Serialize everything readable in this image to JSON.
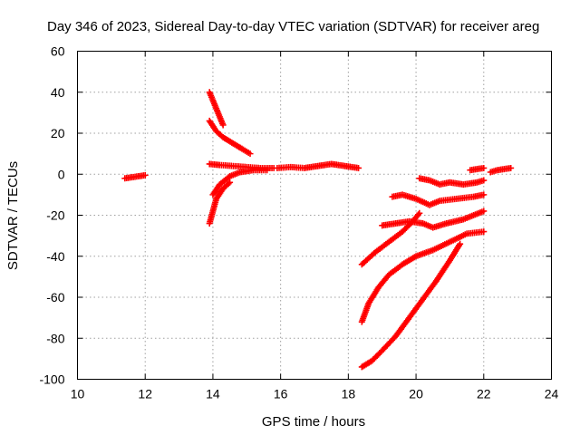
{
  "chart_data": {
    "type": "scatter",
    "title": "Day 346 of 2023, Sidereal Day-to-day VTEC variation (SDTVAR) for receiver areg",
    "xlabel": "GPS time / hours",
    "ylabel": "SDTVAR / TECUs",
    "xlim": [
      10,
      24
    ],
    "ylim": [
      -100,
      60
    ],
    "xticks": [
      "10",
      "12",
      "14",
      "16",
      "18",
      "20",
      "22",
      "24"
    ],
    "yticks": [
      "-100",
      "-80",
      "-60",
      "-40",
      "-20",
      "0",
      "20",
      "40",
      "60"
    ],
    "grid": true,
    "marker": "plus",
    "color": "#ff0000",
    "series": [
      {
        "name": "s1",
        "x": [
          11.4,
          11.6,
          11.8,
          12.0
        ],
        "y": [
          -2,
          -1.5,
          -1,
          -0.5
        ]
      },
      {
        "name": "s2",
        "x": [
          13.9,
          14.0,
          14.1,
          14.2,
          14.3
        ],
        "y": [
          40,
          36,
          32,
          28,
          24
        ]
      },
      {
        "name": "s3",
        "x": [
          13.9,
          14.1,
          14.3,
          14.6,
          14.9,
          15.1
        ],
        "y": [
          26,
          21,
          18,
          15,
          12,
          10
        ]
      },
      {
        "name": "s4",
        "x": [
          13.9,
          14.2,
          14.6,
          15.0,
          15.4,
          15.8
        ],
        "y": [
          5,
          4.5,
          4,
          3.5,
          3,
          3
        ]
      },
      {
        "name": "s5",
        "x": [
          14.0,
          14.2,
          14.5,
          14.8,
          15.2,
          15.6
        ],
        "y": [
          -10,
          -5,
          -1,
          1,
          2,
          2
        ]
      },
      {
        "name": "s6",
        "x": [
          13.9,
          14.0,
          14.1,
          14.3,
          14.5
        ],
        "y": [
          -24,
          -18,
          -12,
          -7,
          -4
        ]
      },
      {
        "name": "s7",
        "x": [
          15.9,
          16.3,
          16.7,
          17.1,
          17.5,
          17.9,
          18.3
        ],
        "y": [
          3,
          3.5,
          3,
          4,
          5,
          4,
          3
        ]
      },
      {
        "name": "s8",
        "x": [
          18.4,
          18.8,
          19.2,
          19.6,
          19.9,
          20.1
        ],
        "y": [
          -44,
          -38,
          -33,
          -28,
          -23,
          -19
        ]
      },
      {
        "name": "s9",
        "x": [
          18.4,
          18.6,
          18.9,
          19.2,
          19.6,
          20.0,
          20.5,
          21.0,
          21.5,
          22.0
        ],
        "y": [
          -72,
          -63,
          -55,
          -49,
          -44,
          -40,
          -37,
          -33,
          -29,
          -28
        ]
      },
      {
        "name": "s10",
        "x": [
          18.4,
          18.7,
          19.0,
          19.4,
          19.8,
          20.2,
          20.6,
          21.0,
          21.3
        ],
        "y": [
          -94,
          -91,
          -86,
          -79,
          -70,
          -61,
          -52,
          -42,
          -34
        ]
      },
      {
        "name": "s11",
        "x": [
          19.0,
          19.4,
          19.8,
          20.2,
          20.5,
          20.9,
          21.4,
          22.0
        ],
        "y": [
          -25,
          -24,
          -23,
          -24,
          -26,
          -24,
          -22,
          -18
        ]
      },
      {
        "name": "s12",
        "x": [
          19.3,
          19.6,
          20.0,
          20.4,
          20.7,
          21.2,
          21.7,
          22.0
        ],
        "y": [
          -11,
          -10,
          -12,
          -15,
          -13,
          -12,
          -11,
          -10
        ]
      },
      {
        "name": "s13",
        "x": [
          20.1,
          20.4,
          20.7,
          21.0,
          21.4,
          21.8,
          22.0
        ],
        "y": [
          -2,
          -3,
          -5,
          -4,
          -5,
          -4,
          -3
        ]
      },
      {
        "name": "s14",
        "x": [
          21.6,
          21.8,
          22.0
        ],
        "y": [
          2,
          2.5,
          3
        ]
      },
      {
        "name": "s15",
        "x": [
          22.2,
          22.4,
          22.6,
          22.8
        ],
        "y": [
          1,
          2,
          2.5,
          3
        ]
      }
    ]
  }
}
